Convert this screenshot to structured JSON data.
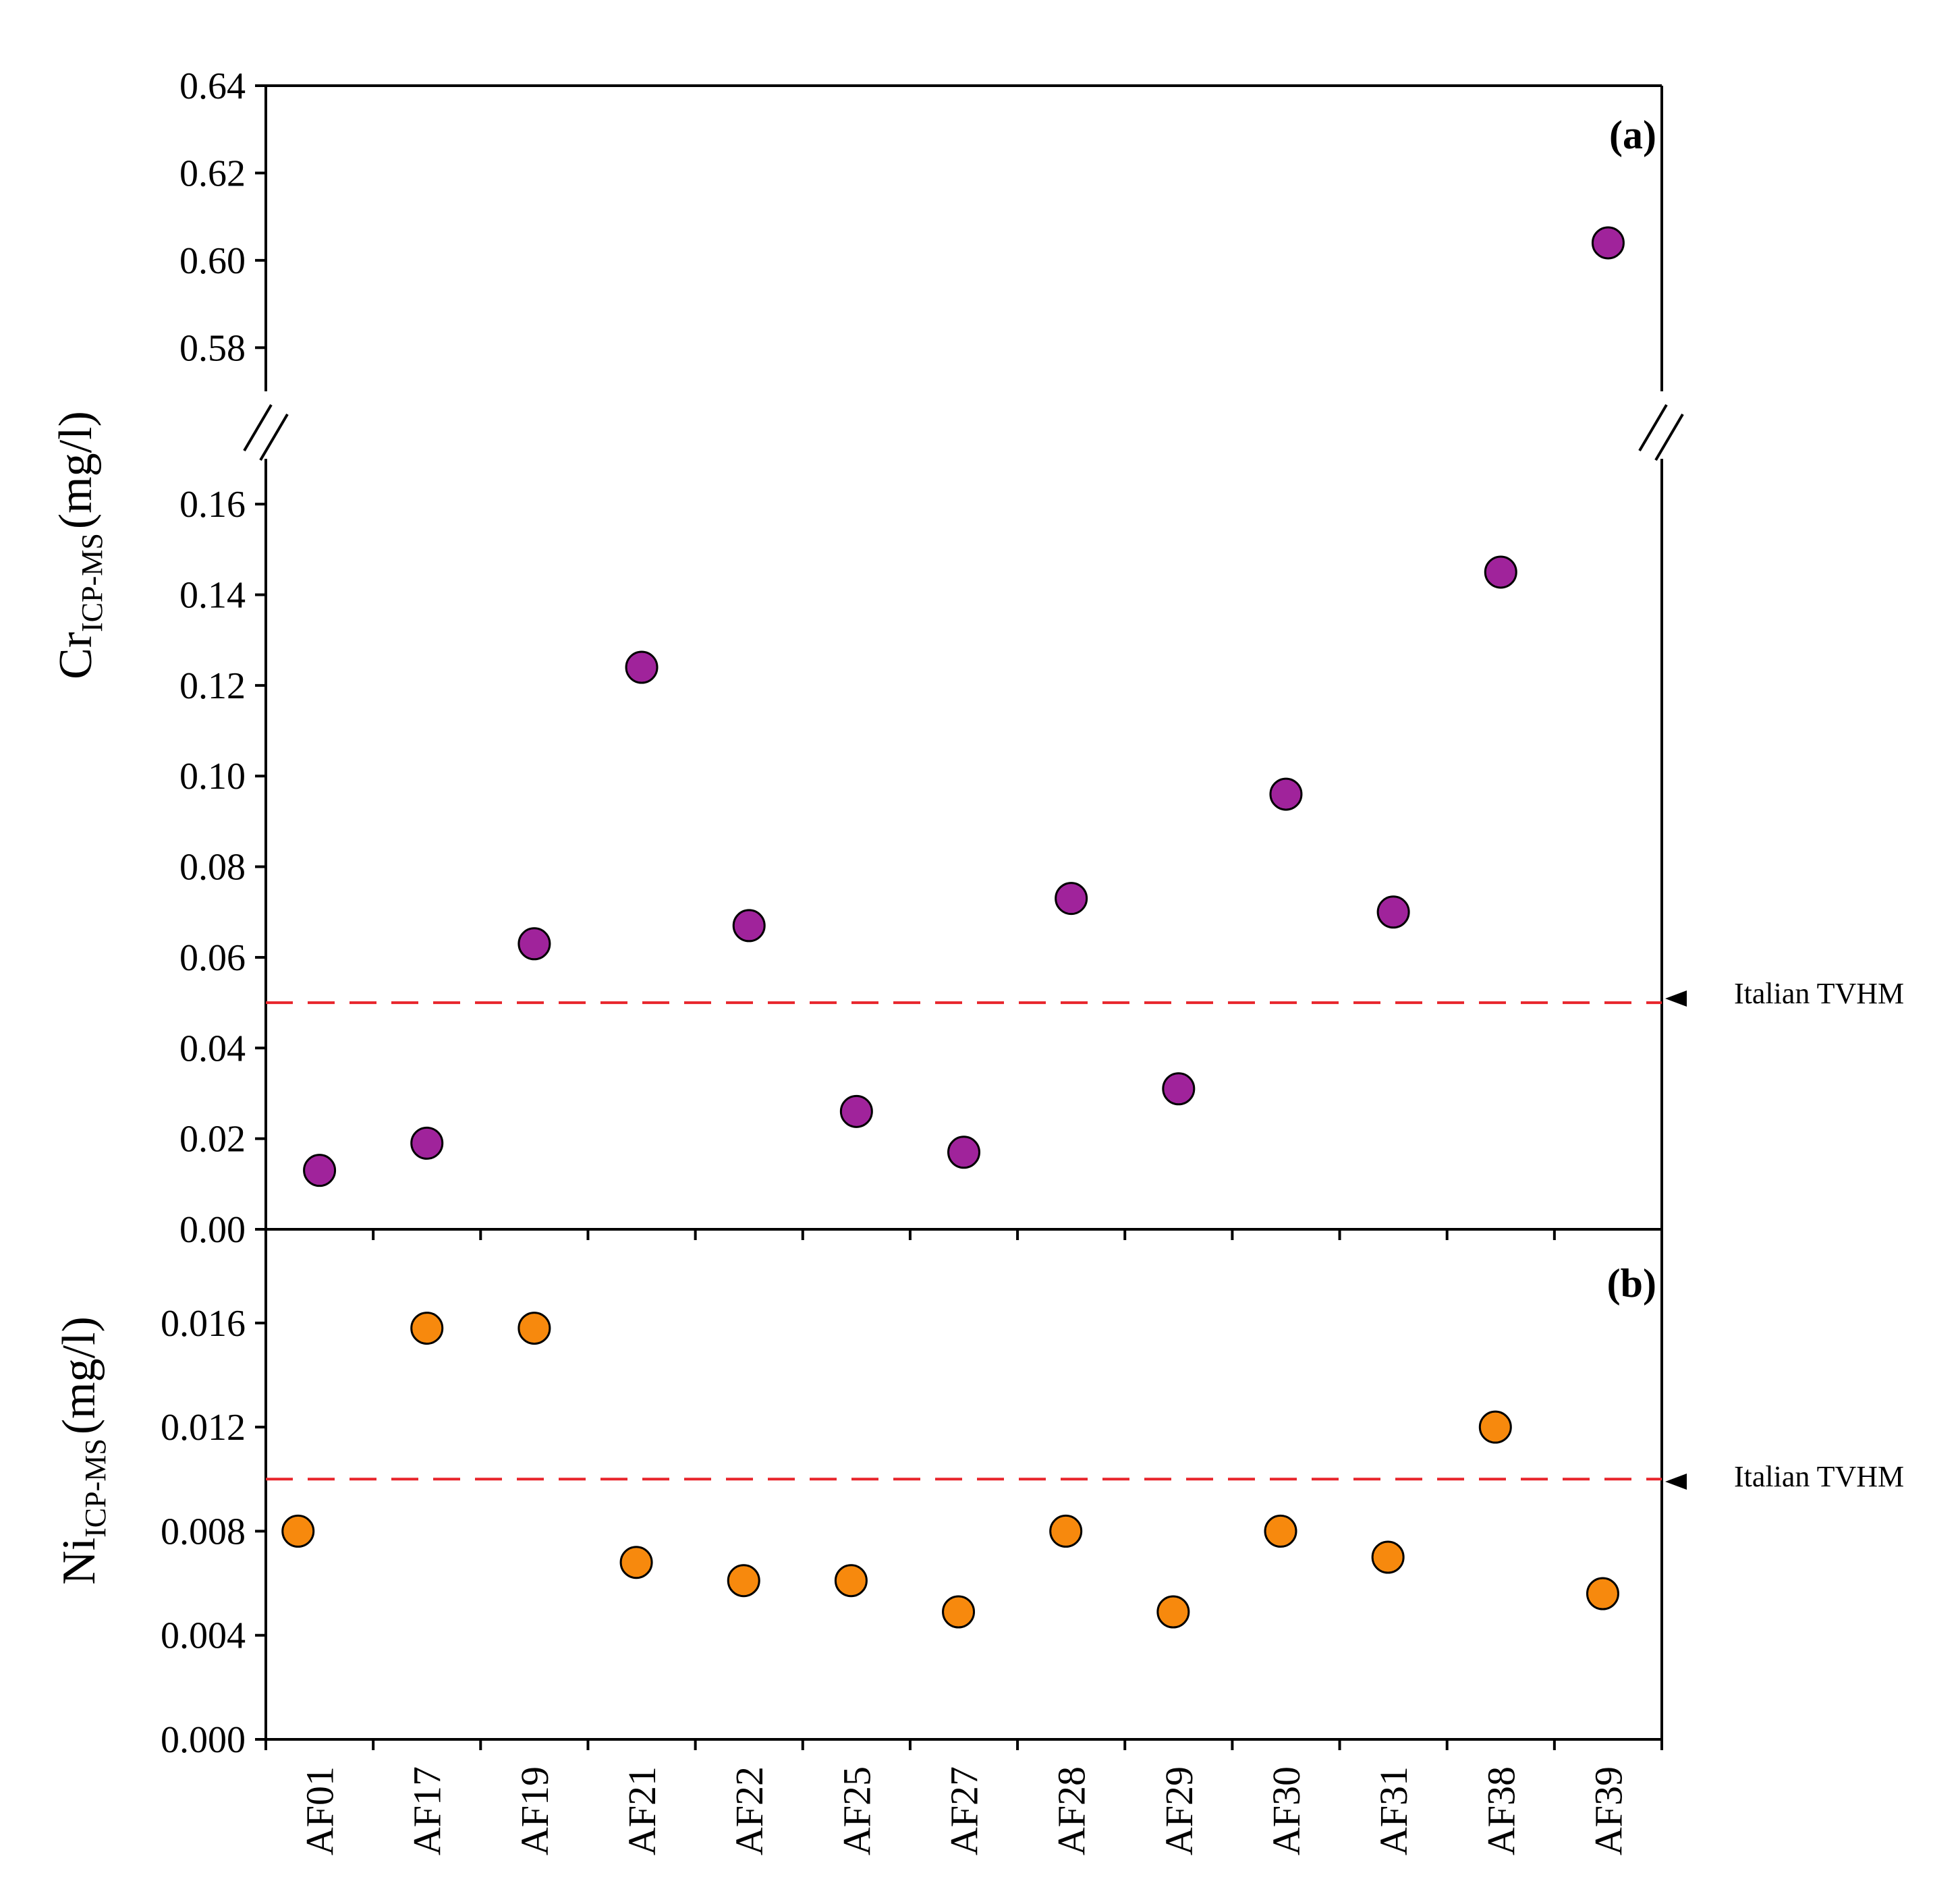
{
  "chart_data": [
    {
      "panel": "(a)",
      "type": "scatter",
      "ylabel": "Cr",
      "ylabel_sub": "ICP-MS",
      "ylabel_unit": "(mg/l)",
      "categories": [
        "AF01",
        "AF17",
        "AF19",
        "AF21",
        "AF22",
        "AF25",
        "AF27",
        "AF28",
        "AF29",
        "AF30",
        "AF31",
        "AF38",
        "AF39"
      ],
      "values": [
        0.013,
        0.019,
        0.063,
        0.124,
        0.067,
        0.026,
        0.017,
        0.073,
        0.031,
        0.096,
        0.07,
        0.145,
        0.604
      ],
      "offsets": [
        0.5,
        0.5,
        0.5,
        0.5,
        0.5,
        0.5,
        0.5,
        0.5,
        0.5,
        0.5,
        0.5,
        0.5,
        0.5
      ],
      "y_segments": [
        {
          "ylim": [
            0.0,
            0.17
          ],
          "ticks": [
            "0.00",
            "0.02",
            "0.04",
            "0.06",
            "0.08",
            "0.10",
            "0.12",
            "0.14",
            "0.16"
          ]
        },
        {
          "ylim": [
            0.57,
            0.64
          ],
          "ticks": [
            "0.58",
            "0.60",
            "0.62",
            "0.64"
          ]
        }
      ],
      "axis_break": true,
      "reference": {
        "value": 0.05,
        "label": "Italian TVHM",
        "color": "#e8252b"
      },
      "marker_color": "#a0239b"
    },
    {
      "panel": "(b)",
      "type": "scatter",
      "ylabel": "Ni",
      "ylabel_sub": "ICP-MS",
      "ylabel_unit": "(mg/l)",
      "categories": [
        "AF01",
        "AF17",
        "AF19",
        "AF21",
        "AF22",
        "AF25",
        "AF27",
        "AF28",
        "AF29",
        "AF30",
        "AF31",
        "AF38",
        "AF39"
      ],
      "values": [
        0.008,
        0.0158,
        0.0158,
        0.0068,
        0.0061,
        0.0061,
        0.0049,
        0.008,
        0.0049,
        0.008,
        0.007,
        0.012,
        0.0056
      ],
      "offsets": [
        0.3,
        0.5,
        0.5,
        0.45,
        0.45,
        0.45,
        0.45,
        0.45,
        0.45,
        0.45,
        0.45,
        0.45,
        0.45
      ],
      "ylim": [
        0.0,
        0.0196
      ],
      "ticks": [
        "0.000",
        "0.004",
        "0.008",
        "0.012",
        "0.016"
      ],
      "reference": {
        "value": 0.01,
        "label": "Italian TVHM",
        "color": "#e8252b"
      },
      "marker_color": "#f7890d"
    }
  ]
}
